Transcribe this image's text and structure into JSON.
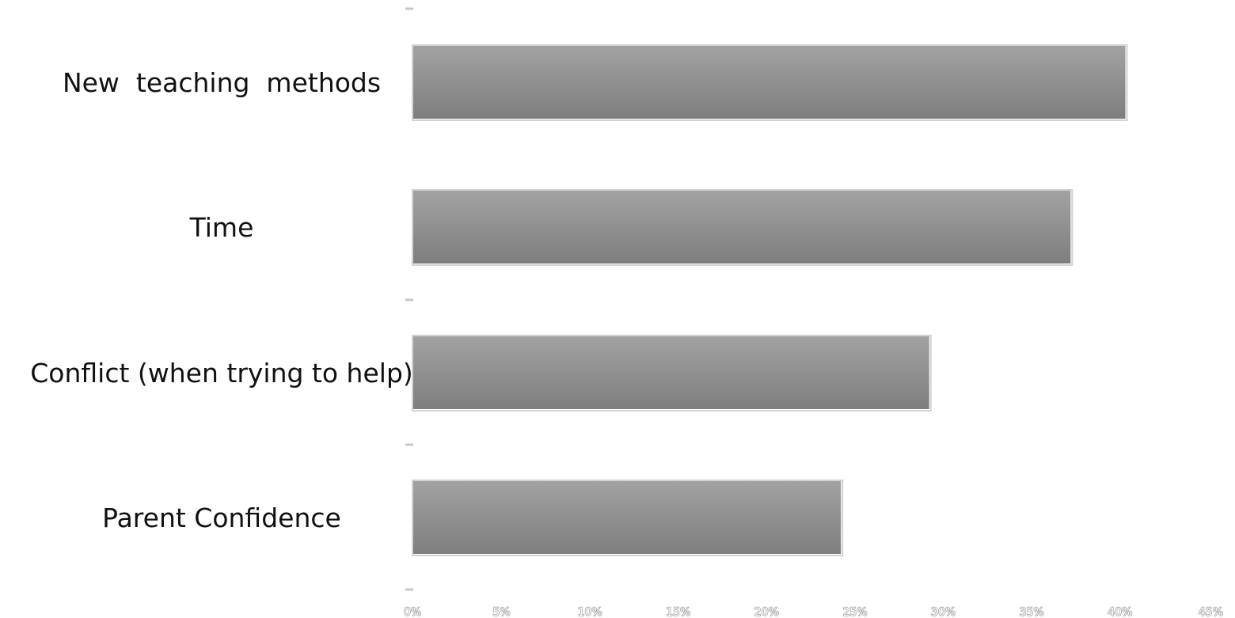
{
  "chart_data": {
    "type": "bar",
    "orientation": "horizontal",
    "categories": [
      "New  teaching  methods",
      "Time",
      "Conflict (when trying to help)",
      "Parent Confidence"
    ],
    "values": [
      40.3,
      37.2,
      29.2,
      24.2
    ],
    "value_unit": "%",
    "x_ticks": [
      "0%",
      "5%",
      "10%",
      "15%",
      "20%",
      "25%",
      "30%",
      "35%",
      "40%",
      "45%"
    ],
    "xlim": [
      0,
      45
    ],
    "grid": false,
    "legend": "none",
    "colors": {
      "bar_top": "#a2a2a2",
      "bar_bottom": "#7e7e7e",
      "bar_outline": "#d2d2d2",
      "tick_mark": "#c8c8c8",
      "tick_label": "#9a9a9a",
      "category_label": "#111111"
    }
  }
}
